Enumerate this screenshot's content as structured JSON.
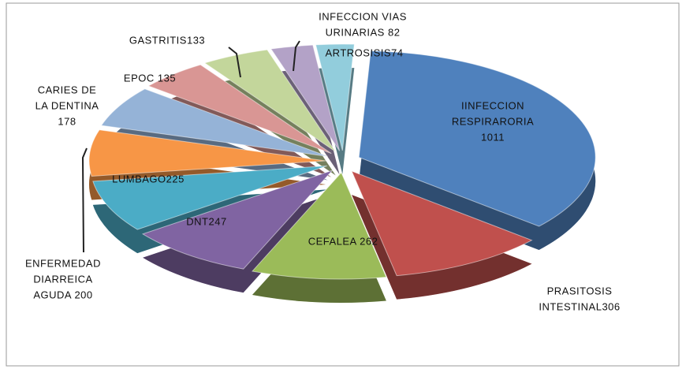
{
  "chart_data": {
    "type": "pie",
    "values": [
      1011,
      306,
      262,
      247,
      225,
      200,
      178,
      135,
      133,
      82,
      74
    ],
    "value_labels": [
      [
        "IINFECCION",
        "RESPIRARORIA",
        "1011"
      ],
      [
        "PRASITOSIS",
        "INTESTINAL306"
      ],
      [
        "CEFALEA 262"
      ],
      [
        "DNT247"
      ],
      [
        "LUMBAGO225"
      ],
      [
        "ENFERMEDAD",
        "DIARREICA",
        "AGUDA 200"
      ],
      [
        "CARIES DE",
        "LA DENTINA",
        "178"
      ],
      [
        "EPOC 135"
      ],
      [
        "GASTRITIS133"
      ],
      [
        "INFECCION VIAS",
        "URINARIAS 82"
      ],
      [
        "ARTROSISIS74"
      ]
    ],
    "colors": [
      "#4f81bd",
      "#c0504d",
      "#9bbb59",
      "#8064a2",
      "#4bacc6",
      "#f79646",
      "#95b3d7",
      "#d99694",
      "#c3d69b",
      "#b3a2c7",
      "#92cddc"
    ]
  }
}
